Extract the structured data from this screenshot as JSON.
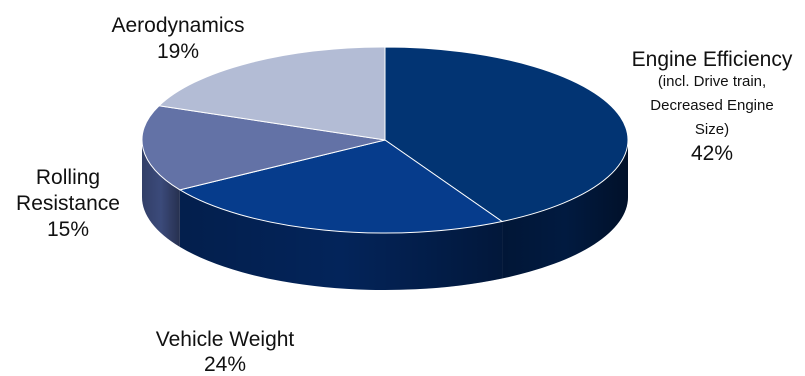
{
  "chart_data": {
    "type": "pie",
    "style": "3d",
    "slices": [
      {
        "label": "Engine Efficiency",
        "sublabel": [
          "(incl. Drive train,",
          "Decreased Engine",
          "Size)"
        ],
        "value": 42,
        "value_label": "42%",
        "color": "#023473",
        "side_color": "#011a40"
      },
      {
        "label": "Vehicle Weight",
        "sublabel": [],
        "value": 24,
        "value_label": "24%",
        "color": "#063c8c",
        "side_color": "#03245a"
      },
      {
        "label": "Rolling Resistance",
        "sublabel": [],
        "value": 15,
        "value_label": "15%",
        "color": "#6372a6",
        "side_color": "#3b4a7a"
      },
      {
        "label": "Aerodynamics",
        "sublabel": [],
        "value": 19,
        "value_label": "19%",
        "color": "#b3bcd5",
        "side_color": "#8e98b6"
      }
    ],
    "rolling_label_lines": [
      "Rolling",
      "Resistance"
    ]
  }
}
